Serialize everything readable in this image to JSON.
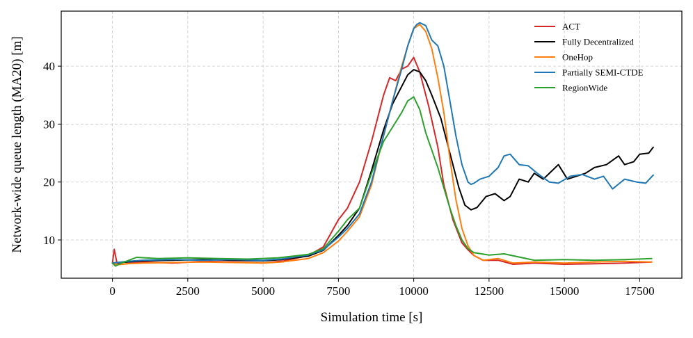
{
  "chart_data": {
    "type": "line",
    "title": "",
    "xlabel": "Simulation time [s]",
    "ylabel": "Network-wide queue length (MA20) [m]",
    "xlim": [
      -1700,
      18900
    ],
    "ylim": [
      3.4,
      49.5
    ],
    "xticks": [
      0,
      2500,
      5000,
      7500,
      10000,
      12500,
      15000,
      17500
    ],
    "yticks": [
      10,
      20,
      30,
      40
    ],
    "grid": true,
    "legend_position": "top-right",
    "series": [
      {
        "name": "ACT",
        "color": "#d62728",
        "x": [
          0,
          60,
          150,
          300,
          1000,
          2000,
          3000,
          4000,
          5000,
          5700,
          6500,
          7000,
          7500,
          7800,
          8200,
          8600,
          9000,
          9200,
          9400,
          9600,
          9800,
          10000,
          10200,
          10500,
          10800,
          11000,
          11300,
          11600,
          11800,
          12000,
          12300,
          12800,
          13300,
          14000,
          15000,
          16000,
          17000,
          17900
        ],
        "y": [
          6.0,
          8.4,
          6.0,
          5.8,
          6.2,
          6.0,
          6.3,
          6.2,
          6.0,
          6.4,
          7.3,
          8.8,
          13.5,
          15.5,
          20.0,
          27.0,
          35.0,
          38.0,
          37.5,
          39.5,
          40.0,
          41.5,
          39.0,
          33.0,
          26.0,
          19.5,
          13.5,
          9.5,
          8.3,
          7.3,
          6.5,
          6.5,
          5.8,
          6.0,
          5.8,
          5.9,
          6.0,
          6.2
        ]
      },
      {
        "name": "Fully Decentralized",
        "color": "#000000",
        "x": [
          0,
          150,
          500,
          1000,
          2000,
          3000,
          4000,
          5000,
          5600,
          6500,
          7000,
          7500,
          7800,
          8200,
          8600,
          9000,
          9300,
          9600,
          9800,
          10000,
          10200,
          10400,
          10600,
          10900,
          11200,
          11500,
          11700,
          11900,
          12100,
          12400,
          12700,
          13000,
          13200,
          13500,
          13800,
          14000,
          14300,
          14600,
          14800,
          15100,
          15400,
          15700,
          16000,
          16400,
          16800,
          17000,
          17300,
          17500,
          17800,
          17950
        ],
        "y": [
          6.0,
          6.1,
          6.2,
          6.4,
          6.5,
          6.6,
          6.5,
          6.4,
          6.6,
          7.2,
          8.2,
          10.8,
          12.5,
          15.5,
          22.0,
          29.0,
          33.5,
          36.5,
          38.5,
          39.4,
          39.0,
          37.5,
          35.0,
          31.0,
          25.0,
          19.0,
          16.0,
          15.2,
          15.6,
          17.5,
          18.0,
          16.8,
          17.5,
          20.5,
          20.0,
          21.5,
          20.5,
          22.0,
          23.0,
          20.5,
          21.0,
          21.5,
          22.5,
          23.0,
          24.5,
          23.0,
          23.5,
          24.8,
          25.0,
          26.0
        ]
      },
      {
        "name": "OneHop",
        "color": "#ff7f0e",
        "x": [
          0,
          150,
          500,
          1000,
          2000,
          3000,
          4000,
          5000,
          5600,
          6500,
          7000,
          7500,
          7800,
          8200,
          8600,
          9000,
          9300,
          9600,
          9800,
          10000,
          10200,
          10400,
          10600,
          10800,
          11000,
          11200,
          11400,
          11600,
          11800,
          12000,
          12300,
          12800,
          13300,
          14000,
          15000,
          16000,
          17000,
          17900
        ],
        "y": [
          6.0,
          5.7,
          5.9,
          6.0,
          6.1,
          6.2,
          6.1,
          6.0,
          6.2,
          6.8,
          7.8,
          9.8,
          11.5,
          14.0,
          19.5,
          28.0,
          34.0,
          40.0,
          43.5,
          46.5,
          47.2,
          46.0,
          43.0,
          38.0,
          32.0,
          24.0,
          17.0,
          12.0,
          9.0,
          7.3,
          6.5,
          6.8,
          6.0,
          6.2,
          6.0,
          6.2,
          6.3,
          6.2
        ]
      },
      {
        "name": "Partially SEMI-CTDE",
        "color": "#1f77b4",
        "x": [
          0,
          150,
          500,
          1000,
          2000,
          3000,
          4000,
          5000,
          5600,
          6500,
          7000,
          7500,
          7800,
          8200,
          8600,
          9000,
          9300,
          9600,
          9800,
          10000,
          10100,
          10200,
          10400,
          10600,
          10800,
          11000,
          11200,
          11400,
          11600,
          11800,
          11900,
          12000,
          12200,
          12500,
          12800,
          13000,
          13200,
          13500,
          13800,
          14100,
          14500,
          14800,
          15200,
          15600,
          16000,
          16300,
          16600,
          17000,
          17400,
          17700,
          17950
        ],
        "y": [
          6.0,
          6.1,
          6.3,
          6.5,
          6.6,
          6.5,
          6.6,
          6.5,
          6.7,
          7.4,
          8.3,
          10.5,
          12.0,
          14.5,
          20.0,
          28.0,
          34.0,
          39.5,
          43.5,
          46.5,
          47.2,
          47.5,
          47.0,
          44.5,
          43.5,
          40.0,
          34.0,
          28.0,
          23.0,
          20.0,
          19.6,
          19.8,
          20.5,
          21.0,
          22.5,
          24.5,
          24.8,
          23.0,
          22.8,
          21.5,
          20.0,
          19.8,
          21.0,
          21.3,
          20.5,
          21.0,
          18.8,
          20.5,
          20.0,
          19.8,
          21.2
        ]
      },
      {
        "name": "RegionWide",
        "color": "#2ca02c",
        "x": [
          0,
          100,
          300,
          800,
          1500,
          2500,
          3500,
          4500,
          5500,
          6500,
          7000,
          7500,
          7800,
          8200,
          8600,
          9000,
          9300,
          9600,
          9800,
          10000,
          10200,
          10400,
          10600,
          10800,
          11000,
          11200,
          11400,
          11600,
          11800,
          12000,
          12500,
          13000,
          14000,
          15000,
          16000,
          17000,
          17900
        ],
        "y": [
          6.0,
          5.5,
          6.0,
          7.0,
          6.8,
          6.9,
          6.8,
          6.7,
          6.9,
          7.5,
          8.5,
          11.5,
          13.5,
          15.5,
          21.5,
          27.0,
          29.5,
          32.0,
          34.0,
          34.7,
          32.5,
          28.5,
          25.5,
          22.5,
          19.0,
          15.5,
          12.5,
          10.0,
          8.5,
          7.8,
          7.4,
          7.6,
          6.5,
          6.6,
          6.5,
          6.6,
          6.8
        ]
      }
    ]
  }
}
